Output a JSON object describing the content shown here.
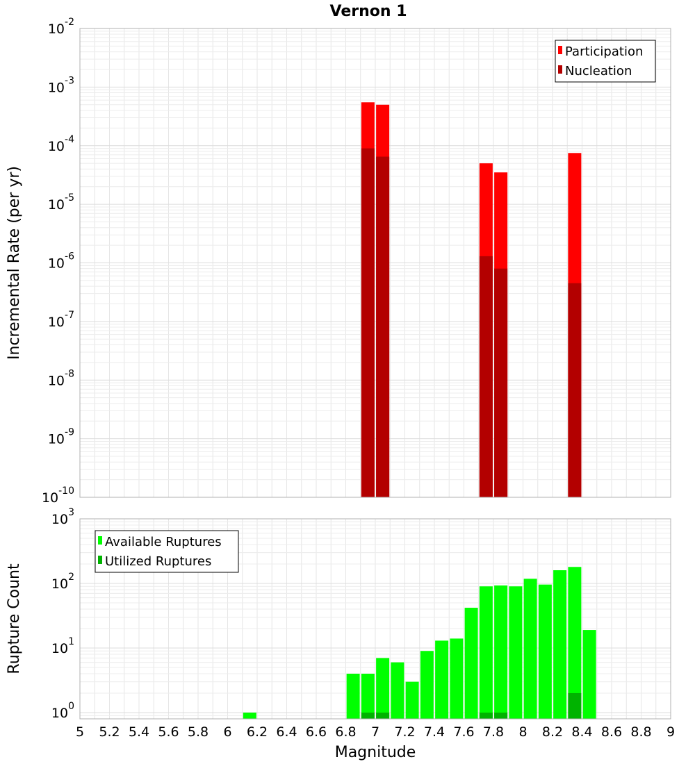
{
  "chart_data": [
    {
      "type": "bar",
      "title": "Vernon 1",
      "xlabel": "",
      "ylabel": "Incremental Rate (per yr)",
      "y_scale": "log",
      "ylim": [
        1e-10,
        0.01
      ],
      "xlim": [
        5,
        9
      ],
      "grid": true,
      "legend_position": "top-right",
      "legend": [
        "Participation",
        "Nucleation"
      ],
      "colors": {
        "Participation": "#ff0000",
        "Nucleation": "#b30000"
      },
      "series": [
        {
          "name": "Participation",
          "x": [
            6.95,
            7.05,
            7.75,
            7.85,
            8.35
          ],
          "values": [
            0.00055,
            0.0005,
            5e-05,
            3.5e-05,
            7.5e-05
          ]
        },
        {
          "name": "Nucleation",
          "x": [
            6.95,
            7.05,
            7.75,
            7.85,
            8.35
          ],
          "values": [
            9e-05,
            6.5e-05,
            1.3e-06,
            8e-07,
            4.5e-07
          ]
        }
      ],
      "y_ticks": [
        {
          "base": "10",
          "exp": "-10"
        },
        {
          "base": "10",
          "exp": "-9"
        },
        {
          "base": "10",
          "exp": "-8"
        },
        {
          "base": "10",
          "exp": "-7"
        },
        {
          "base": "10",
          "exp": "-6"
        },
        {
          "base": "10",
          "exp": "-5"
        },
        {
          "base": "10",
          "exp": "-4"
        },
        {
          "base": "10",
          "exp": "-3"
        },
        {
          "base": "10",
          "exp": "-2"
        }
      ]
    },
    {
      "type": "bar",
      "title": "",
      "xlabel": "Magnitude",
      "ylabel": "Rupture Count",
      "y_scale": "log",
      "ylim": [
        0.8,
        1000
      ],
      "xlim": [
        5,
        9
      ],
      "grid": true,
      "legend_position": "top-left",
      "legend": [
        "Available Ruptures",
        "Utilized Ruptures"
      ],
      "colors": {
        "Available Ruptures": "#00ff00",
        "Utilized Ruptures": "#00b300"
      },
      "series": [
        {
          "name": "Available Ruptures",
          "x": [
            6.15,
            6.85,
            6.95,
            7.05,
            7.15,
            7.25,
            7.35,
            7.45,
            7.55,
            7.65,
            7.75,
            7.85,
            7.95,
            8.05,
            8.15,
            8.25,
            8.35,
            8.45
          ],
          "values": [
            1,
            4,
            4,
            7,
            6,
            3,
            9,
            13,
            14,
            42,
            90,
            93,
            90,
            118,
            96,
            160,
            180,
            19
          ]
        },
        {
          "name": "Utilized Ruptures",
          "x": [
            6.95,
            7.05,
            7.75,
            7.85,
            8.35
          ],
          "values": [
            1,
            1,
            1,
            1,
            2
          ]
        }
      ],
      "y_ticks": [
        {
          "base": "10",
          "exp": "0"
        },
        {
          "base": "10",
          "exp": "1"
        },
        {
          "base": "10",
          "exp": "2"
        },
        {
          "base": "10",
          "exp": "3"
        }
      ],
      "x_ticks": [
        "5",
        "5.2",
        "5.4",
        "5.6",
        "5.8",
        "6",
        "6.2",
        "6.4",
        "6.6",
        "6.8",
        "7",
        "7.2",
        "7.4",
        "7.6",
        "7.8",
        "8",
        "8.2",
        "8.4",
        "8.6",
        "8.8",
        "9"
      ]
    }
  ]
}
